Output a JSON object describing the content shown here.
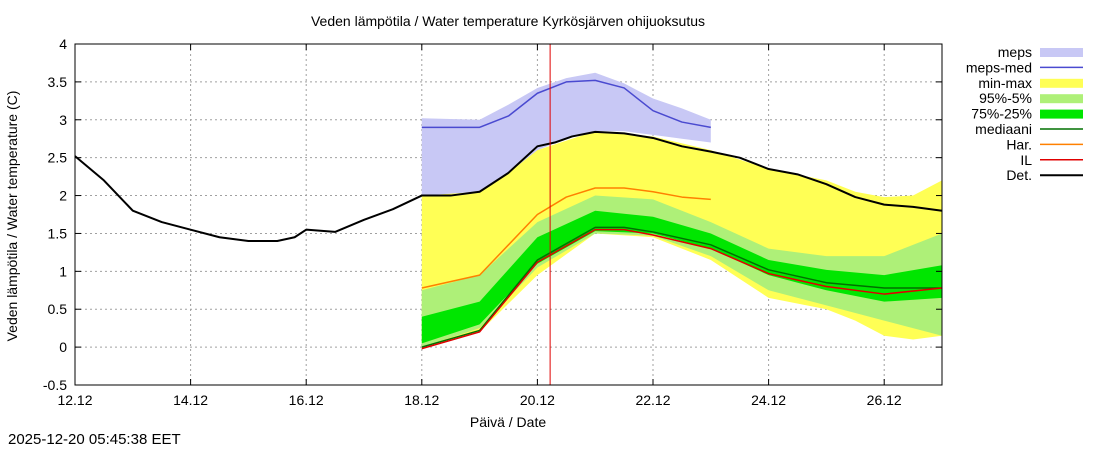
{
  "footer_timestamp": "2025-12-20 05:45:38 EET",
  "colors": {
    "meps": "#c8c8f5",
    "meps_med": "#4a4ad0",
    "min_max": "#ffff55",
    "p95_5": "#aef078",
    "p75_25": "#00e600",
    "median": "#007000",
    "har": "#ff8000",
    "il": "#e00000",
    "det": "#000000",
    "now_line": "#e00000"
  },
  "chart_data": {
    "type": "line",
    "title": "Veden lämpötila / Water temperature Kyrkösjärven ohijuoksutus",
    "xlabel": "Päivä / Date",
    "ylabel": "Veden lämpötila / Water temperature (C)",
    "xlim": [
      0,
      15
    ],
    "ylim": [
      -0.5,
      4
    ],
    "x_unit": "days since 12.12",
    "xticks": [
      {
        "x": 0,
        "label": "12.12"
      },
      {
        "x": 2,
        "label": "14.12"
      },
      {
        "x": 4,
        "label": "16.12"
      },
      {
        "x": 6,
        "label": "18.12"
      },
      {
        "x": 8,
        "label": "20.12"
      },
      {
        "x": 10,
        "label": "22.12"
      },
      {
        "x": 12,
        "label": "24.12"
      },
      {
        "x": 14,
        "label": "26.12"
      }
    ],
    "yticks": [
      {
        "y": -0.5,
        "label": "-0.5"
      },
      {
        "y": 0,
        "label": "0"
      },
      {
        "y": 0.5,
        "label": "0.5"
      },
      {
        "y": 1,
        "label": "1"
      },
      {
        "y": 1.5,
        "label": "1.5"
      },
      {
        "y": 2,
        "label": "2"
      },
      {
        "y": 2.5,
        "label": "2.5"
      },
      {
        "y": 3,
        "label": "3"
      },
      {
        "y": 3.5,
        "label": "3.5"
      },
      {
        "y": 4,
        "label": "4"
      }
    ],
    "grid": true,
    "now_x": 8.22,
    "legend": [
      {
        "key": "meps",
        "label": "meps",
        "style": "band"
      },
      {
        "key": "meps_med",
        "label": "meps-med",
        "style": "line"
      },
      {
        "key": "min_max",
        "label": "min-max",
        "style": "band"
      },
      {
        "key": "p95_5",
        "label": "95%-5%",
        "style": "band"
      },
      {
        "key": "p75_25",
        "label": "75%-25%",
        "style": "band"
      },
      {
        "key": "median",
        "label": "mediaani",
        "style": "line"
      },
      {
        "key": "har",
        "label": "Har.",
        "style": "line"
      },
      {
        "key": "il",
        "label": "IL",
        "style": "line"
      },
      {
        "key": "det",
        "label": "Det.",
        "style": "line"
      }
    ],
    "bands": [
      {
        "key": "min_max",
        "x": [
          6.0,
          7.0,
          8.0,
          9.0,
          10.0,
          11.0,
          12.0,
          13.0,
          13.5,
          14.0,
          14.5,
          15.0
        ],
        "low": [
          0.0,
          0.2,
          0.95,
          1.5,
          1.45,
          1.15,
          0.65,
          0.5,
          0.35,
          0.15,
          0.1,
          0.15
        ],
        "high": [
          2.0,
          2.05,
          2.6,
          2.85,
          2.78,
          2.6,
          2.35,
          2.2,
          2.05,
          1.98,
          2.0,
          2.2
        ]
      },
      {
        "key": "p95_5",
        "x": [
          6.0,
          7.0,
          8.0,
          9.0,
          10.0,
          11.0,
          12.0,
          13.0,
          14.0,
          15.0
        ],
        "low": [
          0.0,
          0.25,
          1.05,
          1.5,
          1.47,
          1.2,
          0.75,
          0.55,
          0.35,
          0.15
        ],
        "high": [
          0.75,
          0.95,
          1.65,
          2.0,
          1.95,
          1.65,
          1.3,
          1.2,
          1.2,
          1.5
        ]
      },
      {
        "key": "p75_25",
        "x": [
          6.0,
          7.0,
          8.0,
          9.0,
          10.0,
          11.0,
          12.0,
          13.0,
          14.0,
          15.0
        ],
        "low": [
          0.05,
          0.3,
          1.1,
          1.53,
          1.5,
          1.3,
          0.95,
          0.75,
          0.6,
          0.65
        ],
        "high": [
          0.4,
          0.6,
          1.45,
          1.8,
          1.72,
          1.5,
          1.15,
          1.02,
          0.95,
          1.08
        ]
      },
      {
        "key": "meps",
        "x": [
          6.0,
          7.0,
          7.5,
          8.0,
          8.5,
          9.0,
          9.5,
          10.0,
          10.5,
          11.0
        ],
        "low": [
          2.0,
          2.05,
          2.3,
          2.6,
          2.75,
          2.85,
          2.85,
          2.8,
          2.75,
          2.7
        ],
        "high": [
          3.02,
          3.0,
          3.2,
          3.42,
          3.55,
          3.62,
          3.48,
          3.28,
          3.15,
          3.0
        ]
      }
    ],
    "series": [
      {
        "key": "det",
        "name": "Det.",
        "x": [
          0.0,
          0.5,
          1.0,
          1.5,
          2.0,
          2.5,
          3.0,
          3.5,
          3.8,
          4.0,
          4.5,
          5.0,
          5.5,
          6.0,
          6.5,
          7.0,
          7.5,
          8.0,
          8.3,
          8.6,
          9.0,
          9.5,
          10.0,
          10.5,
          11.0,
          11.5,
          12.0,
          12.5,
          13.0,
          13.5,
          14.0,
          14.5,
          15.0
        ],
        "y": [
          2.52,
          2.2,
          1.8,
          1.65,
          1.55,
          1.45,
          1.4,
          1.4,
          1.45,
          1.55,
          1.52,
          1.68,
          1.82,
          2.0,
          2.0,
          2.05,
          2.3,
          2.65,
          2.7,
          2.78,
          2.84,
          2.82,
          2.76,
          2.65,
          2.58,
          2.5,
          2.35,
          2.28,
          2.15,
          1.98,
          1.88,
          1.85,
          1.8
        ]
      },
      {
        "key": "meps_med",
        "name": "meps-med",
        "x": [
          6.0,
          7.0,
          7.5,
          8.0,
          8.5,
          9.0,
          9.5,
          10.0,
          10.5,
          11.0
        ],
        "y": [
          2.9,
          2.9,
          3.05,
          3.35,
          3.5,
          3.52,
          3.42,
          3.12,
          2.97,
          2.9
        ]
      },
      {
        "key": "har",
        "name": "Har.",
        "x": [
          6.0,
          7.0,
          7.5,
          8.0,
          8.5,
          9.0,
          9.5,
          10.0,
          10.5,
          11.0
        ],
        "y": [
          0.78,
          0.95,
          1.35,
          1.75,
          1.98,
          2.1,
          2.1,
          2.05,
          1.98,
          1.95
        ]
      },
      {
        "key": "median",
        "name": "mediaani",
        "x": [
          6.0,
          7.0,
          8.0,
          9.0,
          9.5,
          10.0,
          11.0,
          12.0,
          13.0,
          14.0,
          15.0
        ],
        "y": [
          0.0,
          0.22,
          1.15,
          1.58,
          1.58,
          1.52,
          1.35,
          1.02,
          0.85,
          0.78,
          0.78
        ]
      },
      {
        "key": "il",
        "name": "IL",
        "x": [
          6.0,
          7.0,
          8.0,
          9.0,
          9.5,
          10.0,
          11.0,
          12.0,
          13.0,
          14.0,
          15.0
        ],
        "y": [
          -0.02,
          0.2,
          1.12,
          1.55,
          1.55,
          1.48,
          1.3,
          0.97,
          0.8,
          0.7,
          0.78
        ]
      }
    ]
  }
}
